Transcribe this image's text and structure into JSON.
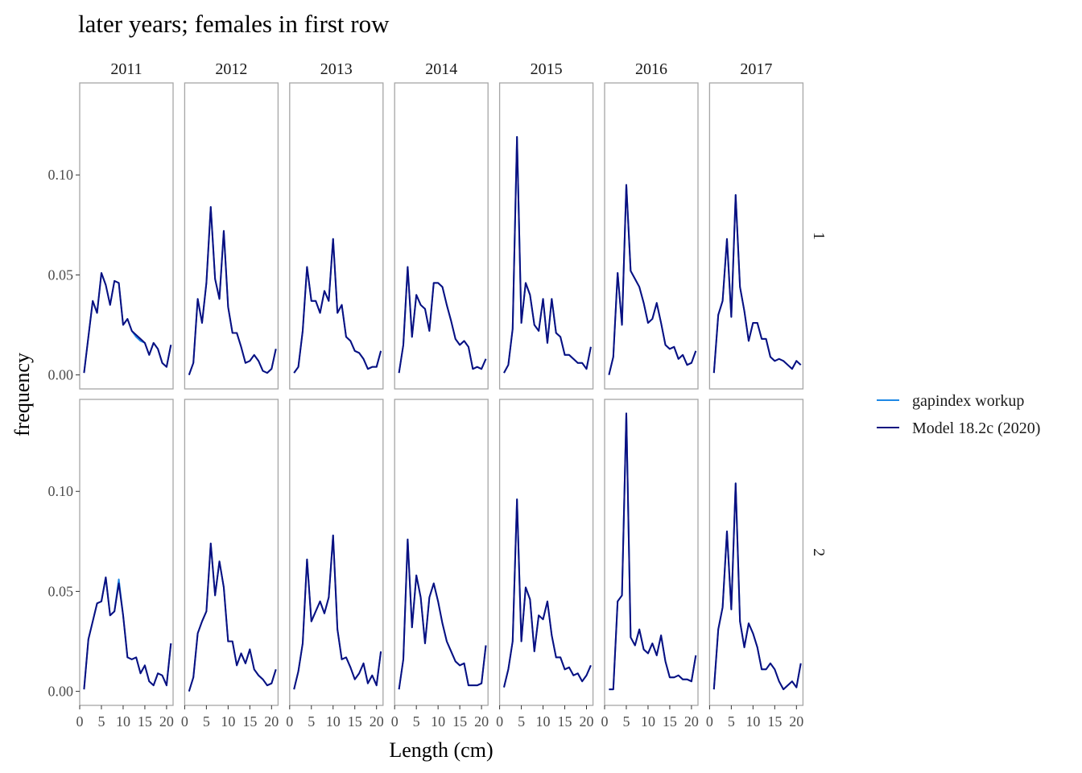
{
  "colors": {
    "gapindex": "#1E88E5",
    "model": "#0B0F80",
    "panel_border": "#A6A6A6",
    "axis_text": "#4D4D4D",
    "text": "#000000"
  },
  "chart_data": {
    "type": "line",
    "title": "later years; females in first row",
    "xlabel": "Length (cm)",
    "ylabel": "frequency",
    "xlim": [
      0,
      21.5
    ],
    "ylim": [
      -0.007,
      0.146
    ],
    "x_ticks": [
      0,
      5,
      10,
      15,
      20
    ],
    "y_ticks": [
      0.0,
      0.05,
      0.1
    ],
    "y_tick_labels": [
      "0.00",
      "0.05",
      "0.10"
    ],
    "grid": false,
    "legend_position": "right",
    "years": [
      "2011",
      "2012",
      "2013",
      "2014",
      "2015",
      "2016",
      "2017"
    ],
    "rows": [
      "1",
      "2"
    ],
    "x": [
      1,
      2,
      3,
      4,
      5,
      6,
      7,
      8,
      9,
      10,
      11,
      12,
      13,
      14,
      15,
      16,
      17,
      18,
      19,
      20,
      21
    ],
    "series": [
      {
        "name": "gapindex workup",
        "color_key": "gapindex"
      },
      {
        "name": "Model 18.2c (2020)",
        "color_key": "model"
      }
    ],
    "values": {
      "model": {
        "1": {
          "2011": [
            0.001,
            0.019,
            0.037,
            0.031,
            0.051,
            0.045,
            0.035,
            0.047,
            0.046,
            0.025,
            0.028,
            0.022,
            0.02,
            0.018,
            0.016,
            0.01,
            0.016,
            0.013,
            0.006,
            0.004,
            0.015
          ],
          "2012": [
            0.0,
            0.006,
            0.038,
            0.026,
            0.046,
            0.084,
            0.048,
            0.038,
            0.072,
            0.034,
            0.021,
            0.021,
            0.014,
            0.006,
            0.007,
            0.01,
            0.007,
            0.002,
            0.001,
            0.003,
            0.013
          ],
          "2013": [
            0.001,
            0.004,
            0.022,
            0.054,
            0.037,
            0.037,
            0.031,
            0.042,
            0.037,
            0.068,
            0.031,
            0.035,
            0.019,
            0.017,
            0.012,
            0.011,
            0.008,
            0.003,
            0.004,
            0.004,
            0.012
          ],
          "2014": [
            0.001,
            0.015,
            0.054,
            0.019,
            0.04,
            0.035,
            0.033,
            0.022,
            0.046,
            0.046,
            0.044,
            0.035,
            0.027,
            0.018,
            0.015,
            0.017,
            0.014,
            0.003,
            0.004,
            0.003,
            0.008
          ],
          "2015": [
            0.001,
            0.005,
            0.023,
            0.119,
            0.026,
            0.046,
            0.04,
            0.025,
            0.022,
            0.038,
            0.016,
            0.038,
            0.021,
            0.019,
            0.01,
            0.01,
            0.008,
            0.006,
            0.006,
            0.003,
            0.014
          ],
          "2016": [
            0.0,
            0.009,
            0.051,
            0.025,
            0.095,
            0.052,
            0.048,
            0.044,
            0.036,
            0.026,
            0.028,
            0.036,
            0.026,
            0.015,
            0.013,
            0.014,
            0.008,
            0.01,
            0.005,
            0.006,
            0.012
          ],
          "2017": [
            0.001,
            0.03,
            0.037,
            0.068,
            0.029,
            0.09,
            0.044,
            0.032,
            0.017,
            0.026,
            0.026,
            0.018,
            0.018,
            0.009,
            0.007,
            0.008,
            0.007,
            0.005,
            0.003,
            0.007,
            0.005
          ]
        },
        "2": {
          "2011": [
            0.001,
            0.026,
            0.035,
            0.044,
            0.045,
            0.057,
            0.038,
            0.04,
            0.054,
            0.038,
            0.017,
            0.016,
            0.017,
            0.009,
            0.013,
            0.005,
            0.003,
            0.009,
            0.008,
            0.003,
            0.024
          ],
          "2012": [
            0.0,
            0.007,
            0.029,
            0.035,
            0.04,
            0.074,
            0.048,
            0.065,
            0.052,
            0.025,
            0.025,
            0.013,
            0.019,
            0.014,
            0.021,
            0.011,
            0.008,
            0.006,
            0.003,
            0.004,
            0.011
          ],
          "2013": [
            0.001,
            0.01,
            0.024,
            0.066,
            0.035,
            0.04,
            0.045,
            0.039,
            0.047,
            0.078,
            0.031,
            0.016,
            0.017,
            0.012,
            0.006,
            0.009,
            0.014,
            0.004,
            0.008,
            0.003,
            0.02
          ],
          "2014": [
            0.001,
            0.016,
            0.076,
            0.032,
            0.058,
            0.047,
            0.024,
            0.047,
            0.054,
            0.045,
            0.034,
            0.025,
            0.02,
            0.015,
            0.013,
            0.014,
            0.003,
            0.003,
            0.003,
            0.004,
            0.023
          ],
          "2015": [
            0.002,
            0.011,
            0.025,
            0.096,
            0.025,
            0.052,
            0.046,
            0.02,
            0.038,
            0.036,
            0.045,
            0.028,
            0.017,
            0.017,
            0.011,
            0.012,
            0.008,
            0.009,
            0.005,
            0.008,
            0.013
          ],
          "2016": [
            0.001,
            0.001,
            0.045,
            0.048,
            0.139,
            0.027,
            0.023,
            0.031,
            0.021,
            0.019,
            0.024,
            0.018,
            0.028,
            0.015,
            0.007,
            0.007,
            0.008,
            0.006,
            0.006,
            0.005,
            0.018
          ],
          "2017": [
            0.001,
            0.031,
            0.042,
            0.08,
            0.041,
            0.104,
            0.035,
            0.022,
            0.034,
            0.029,
            0.022,
            0.011,
            0.011,
            0.014,
            0.011,
            0.005,
            0.001,
            0.003,
            0.005,
            0.002,
            0.014
          ]
        }
      },
      "gapindex_diff": {
        "1": {
          "2011": {
            "13": 0.019,
            "14": 0.017
          }
        },
        "2": {
          "2011": {
            "9": 0.056
          }
        }
      }
    }
  }
}
